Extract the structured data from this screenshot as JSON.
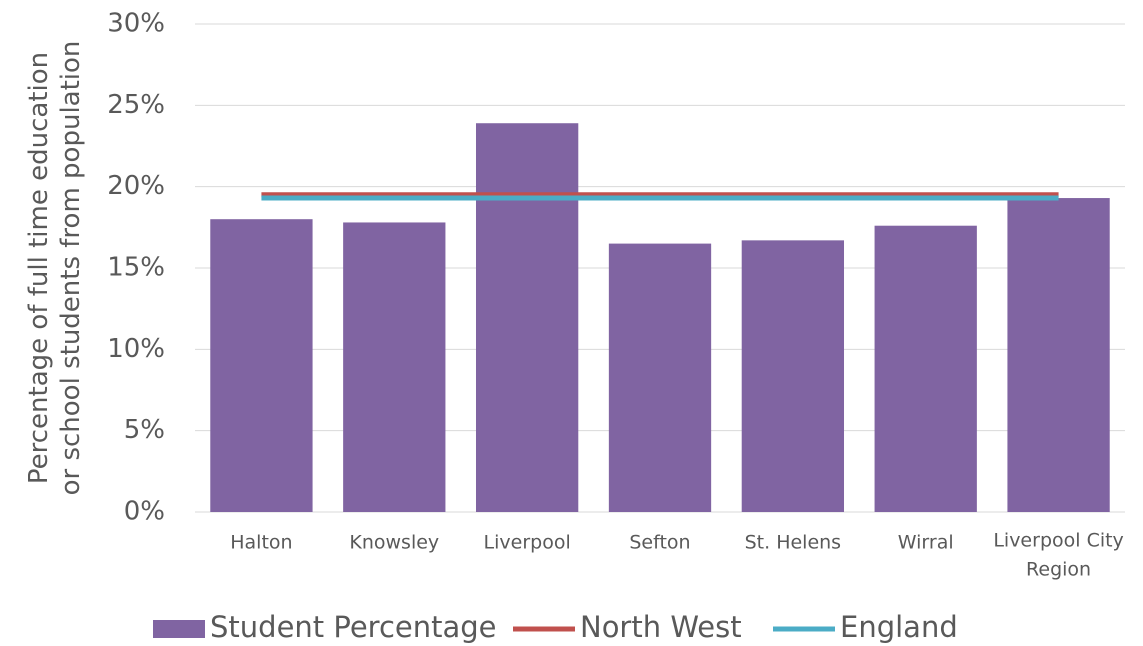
{
  "chart_data": {
    "type": "bar",
    "y_axis_label": "Percentage of full time education or school students from population",
    "categories": [
      "Halton",
      "Knowsley",
      "Liverpool",
      "Sefton",
      "St. Helens",
      "Wirral",
      "Liverpool City Region"
    ],
    "series": [
      {
        "name": "Student Percentage",
        "type": "bar",
        "color": "#8064a2",
        "values": [
          18.0,
          17.8,
          23.9,
          16.5,
          16.7,
          17.6,
          19.3
        ]
      },
      {
        "name": "North West",
        "type": "line",
        "color": "#c0504d",
        "values": [
          19.5,
          19.5,
          19.5,
          19.5,
          19.5,
          19.5,
          19.5
        ]
      },
      {
        "name": "England",
        "type": "line",
        "color": "#4bacc6",
        "values": [
          19.3,
          19.3,
          19.3,
          19.3,
          19.3,
          19.3,
          19.3
        ]
      }
    ],
    "ylim": [
      0,
      30
    ],
    "yticks": [
      {
        "value": 0,
        "label": "0%"
      },
      {
        "value": 5,
        "label": "5%"
      },
      {
        "value": 10,
        "label": "10%"
      },
      {
        "value": 15,
        "label": "15%"
      },
      {
        "value": 20,
        "label": "20%"
      },
      {
        "value": 25,
        "label": "25%"
      },
      {
        "value": 30,
        "label": "30%"
      }
    ],
    "grid": true,
    "legend": "bottom"
  }
}
